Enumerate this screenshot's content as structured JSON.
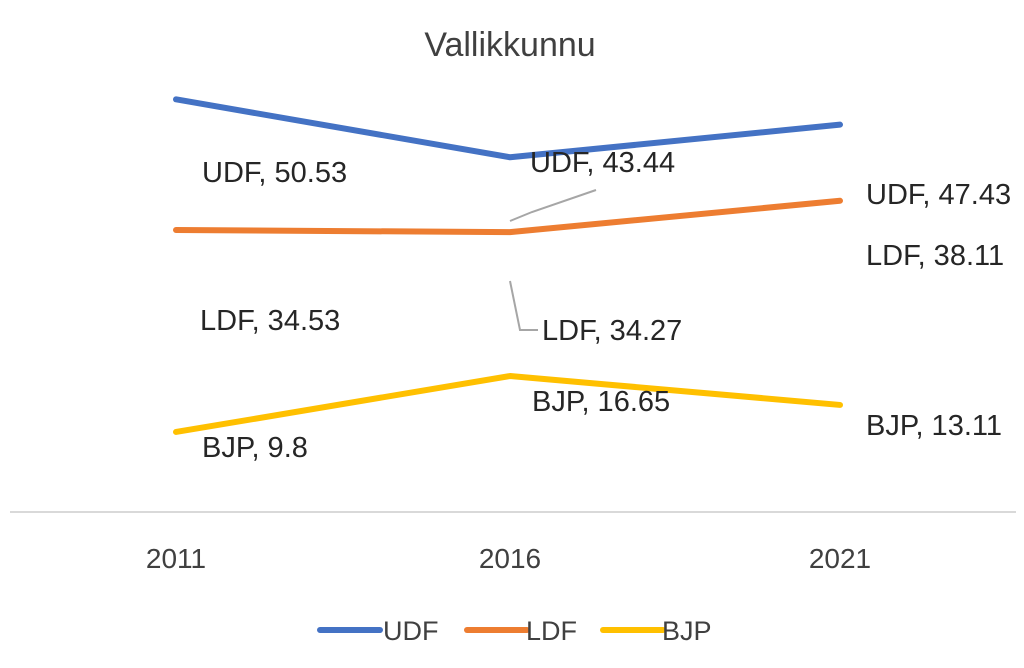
{
  "chart_data": {
    "type": "line",
    "title": "Vallikkunnu",
    "categories": [
      "2011",
      "2016",
      "2021"
    ],
    "series": [
      {
        "name": "UDF",
        "color": "#4472C4",
        "values": [
          50.53,
          43.44,
          47.43
        ],
        "labels": [
          "UDF, 50.53",
          "UDF, 43.44",
          "UDF, 47.43"
        ]
      },
      {
        "name": "LDF",
        "color": "#ED7D31",
        "values": [
          34.53,
          34.27,
          38.11
        ],
        "labels": [
          "LDF, 34.53",
          "LDF, 34.27",
          "LDF, 38.11"
        ]
      },
      {
        "name": "BJP",
        "color": "#FFC000",
        "values": [
          9.8,
          16.65,
          13.11
        ],
        "labels": [
          "BJP, 9.8",
          "BJP, 16.65",
          "BJP, 13.11"
        ]
      }
    ],
    "xlabel": "",
    "ylabel": "",
    "ylim": [
      0,
      60
    ],
    "grid": false,
    "legend": "bottom",
    "leader_line_color": "#A6A6A6",
    "axis_color": "#D9D9D9"
  }
}
